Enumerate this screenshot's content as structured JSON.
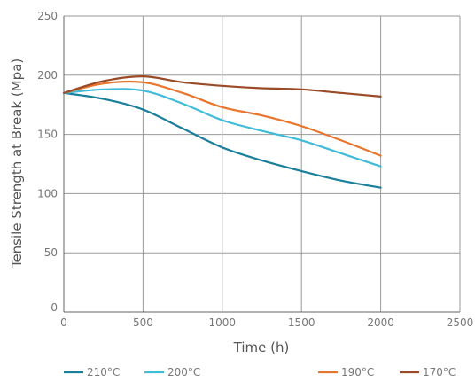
{
  "chart_data": {
    "type": "line",
    "xlabel": "Time (h)",
    "ylabel": "Tensile Strength at Break (Mpa)",
    "xlim": [
      0,
      2500
    ],
    "ylim": [
      0,
      250
    ],
    "xticks": [
      0,
      500,
      1000,
      1500,
      2000,
      2500
    ],
    "yticks": [
      0,
      50,
      100,
      150,
      200,
      250
    ],
    "grid": true,
    "legend_position": "bottom",
    "series": [
      {
        "name": "210°C",
        "color": "#1a7f9a",
        "x": [
          0,
          250,
          500,
          750,
          1000,
          1250,
          1500,
          1750,
          2000
        ],
        "y": [
          185,
          180,
          171,
          155,
          139,
          128,
          119,
          111,
          105
        ]
      },
      {
        "name": "200°C",
        "color": "#41bcd8",
        "x": [
          0,
          250,
          500,
          750,
          1000,
          1250,
          1500,
          1750,
          2000
        ],
        "y": [
          185,
          188,
          187,
          176,
          162,
          153,
          145,
          134,
          123
        ]
      },
      {
        "name": "190°C",
        "color": "#e9742b",
        "x": [
          0,
          250,
          500,
          750,
          1000,
          1250,
          1500,
          1750,
          2000
        ],
        "y": [
          185,
          193,
          194,
          185,
          173,
          166,
          157,
          145,
          132
        ]
      },
      {
        "name": "170°C",
        "color": "#9a4a26",
        "x": [
          0,
          250,
          500,
          750,
          1000,
          1250,
          1500,
          1750,
          2000
        ],
        "y": [
          185,
          195,
          199,
          194,
          191,
          189,
          188,
          185,
          182
        ]
      }
    ]
  }
}
